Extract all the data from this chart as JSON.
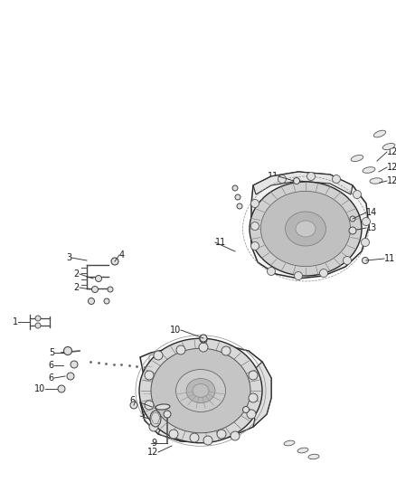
{
  "background_color": "#ffffff",
  "fig_width": 4.38,
  "fig_height": 5.33,
  "dpi": 100,
  "line_color": "#2a2a2a",
  "label_color": "#1a1a1a",
  "font_size": 7.0
}
